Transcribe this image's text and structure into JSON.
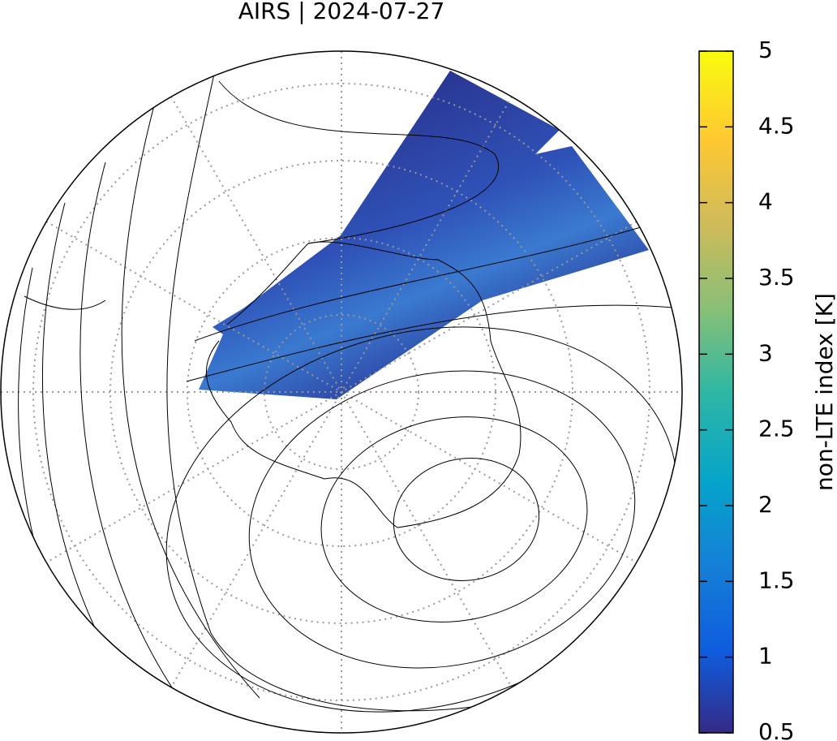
{
  "title": "AIRS | 2024-07-27",
  "colorbar": {
    "label": "non-LTE index [K]",
    "lim": [
      0.5,
      5
    ],
    "ticks": [
      0.5,
      1,
      1.5,
      2,
      2.5,
      3,
      3.5,
      4,
      4.5,
      5
    ]
  }
}
